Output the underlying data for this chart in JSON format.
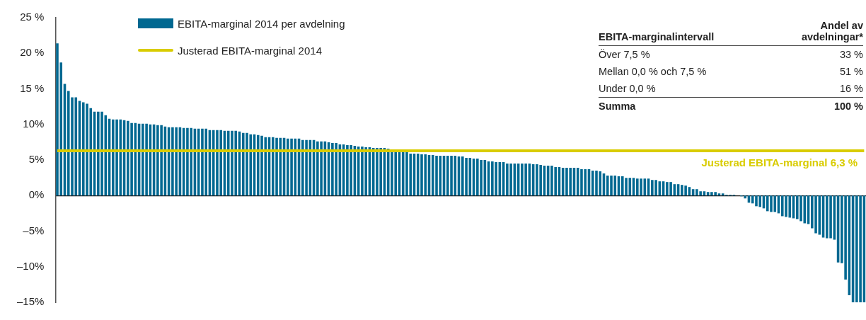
{
  "chart_data": {
    "type": "bar",
    "categories": [
      null,
      null,
      null,
      null,
      null,
      null,
      null,
      null,
      null,
      null,
      null,
      null,
      null,
      null,
      null,
      null,
      null,
      null,
      null,
      null,
      null,
      null,
      null,
      null,
      null,
      null,
      null,
      null,
      null,
      null,
      null,
      null,
      null,
      null,
      null,
      null,
      null,
      null,
      null,
      null,
      null,
      null,
      null,
      null,
      null,
      null,
      null,
      null,
      null,
      null,
      null,
      null,
      null,
      null,
      null,
      null,
      null,
      null,
      null,
      null,
      null,
      null,
      null,
      null,
      null,
      null,
      null,
      null,
      null,
      null,
      null,
      null,
      null,
      null,
      null,
      null,
      null,
      null,
      null,
      null,
      null,
      null,
      null,
      null,
      null,
      null,
      null,
      null,
      null,
      null,
      null,
      null,
      null,
      null,
      null,
      null,
      null,
      null,
      null,
      null,
      null,
      null,
      null,
      null,
      null,
      null,
      null,
      null,
      null,
      null,
      null,
      null,
      null,
      null,
      null,
      null,
      null,
      null,
      null,
      null,
      null,
      null,
      null,
      null,
      null,
      null,
      null,
      null,
      null,
      null,
      null,
      null,
      null,
      null,
      null,
      null,
      null,
      null,
      null,
      null,
      null,
      null,
      null,
      null,
      null,
      null,
      null,
      null,
      null,
      null,
      null,
      null,
      null,
      null,
      null,
      null,
      null,
      null,
      null,
      null,
      null,
      null,
      null,
      null,
      null,
      null,
      null,
      null,
      null,
      null,
      null,
      null,
      null,
      null,
      null,
      null,
      null,
      null,
      null,
      null,
      null,
      null,
      null,
      null,
      null,
      null,
      null,
      null,
      null,
      null,
      null,
      null,
      null,
      null,
      null,
      null,
      null,
      null,
      null,
      null,
      null,
      null,
      null,
      null,
      null,
      null,
      null,
      null,
      null,
      null,
      null,
      null,
      null,
      null,
      null,
      null,
      null,
      null
    ],
    "series": [
      {
        "name": "EBITA-marginal 2014 per avdelning",
        "color": "#006891",
        "values": [
          21.4,
          18.7,
          15.7,
          14.7,
          13.8,
          13.8,
          13.3,
          13.1,
          12.9,
          12.3,
          11.8,
          11.8,
          11.8,
          11.3,
          10.8,
          10.7,
          10.7,
          10.7,
          10.6,
          10.5,
          10.2,
          10.2,
          10.1,
          10.1,
          10.1,
          10.0,
          10.0,
          9.9,
          9.9,
          9.7,
          9.6,
          9.6,
          9.6,
          9.6,
          9.5,
          9.5,
          9.5,
          9.4,
          9.4,
          9.4,
          9.4,
          9.2,
          9.2,
          9.2,
          9.2,
          9.1,
          9.1,
          9.1,
          9.1,
          9.0,
          8.8,
          8.8,
          8.6,
          8.6,
          8.5,
          8.4,
          8.2,
          8.2,
          8.2,
          8.1,
          8.1,
          8.1,
          8.0,
          8.0,
          8.0,
          8.0,
          7.8,
          7.8,
          7.8,
          7.8,
          7.6,
          7.6,
          7.6,
          7.5,
          7.4,
          7.4,
          7.2,
          7.2,
          7.1,
          7.1,
          7.0,
          6.9,
          6.9,
          6.8,
          6.8,
          6.7,
          6.7,
          6.7,
          6.7,
          6.6,
          6.2,
          6.2,
          6.2,
          6.1,
          6.1,
          5.9,
          5.9,
          5.9,
          5.8,
          5.8,
          5.7,
          5.7,
          5.6,
          5.6,
          5.6,
          5.6,
          5.6,
          5.6,
          5.5,
          5.5,
          5.3,
          5.3,
          5.2,
          5.2,
          5.0,
          5.0,
          4.8,
          4.8,
          4.7,
          4.7,
          4.7,
          4.5,
          4.5,
          4.5,
          4.5,
          4.5,
          4.5,
          4.5,
          4.4,
          4.4,
          4.3,
          4.2,
          4.2,
          4.2,
          4.0,
          4.0,
          3.9,
          3.9,
          3.9,
          3.9,
          3.9,
          3.7,
          3.7,
          3.7,
          3.5,
          3.5,
          3.4,
          3.1,
          2.8,
          2.8,
          2.8,
          2.7,
          2.7,
          2.5,
          2.5,
          2.5,
          2.4,
          2.4,
          2.4,
          2.4,
          2.2,
          2.2,
          2.0,
          2.0,
          1.9,
          1.9,
          1.6,
          1.6,
          1.5,
          1.4,
          1.2,
          0.9,
          0.9,
          0.6,
          0.6,
          0.5,
          0.5,
          0.5,
          0.3,
          0.3,
          0.1,
          0.1,
          0.1,
          0.0,
          -0.1,
          -0.4,
          -1.0,
          -1.1,
          -1.5,
          -1.6,
          -1.8,
          -2.2,
          -2.3,
          -2.3,
          -2.5,
          -2.9,
          -3.0,
          -3.1,
          -3.2,
          -3.3,
          -3.6,
          -3.9,
          -4.0,
          -4.6,
          -5.3,
          -5.5,
          -5.9,
          -6.0,
          -6.0,
          -6.2,
          -9.4,
          -9.5,
          -11.8,
          -14.0,
          -15,
          -15,
          -15,
          -15
        ]
      },
      {
        "name": "Justerad EBITA-marginal 2014",
        "type": "line",
        "color": "#d9cc00",
        "values": [
          6.3,
          6.3,
          6.3,
          6.3,
          6.3,
          6.3,
          6.3,
          6.3,
          6.3,
          6.3,
          6.3,
          6.3,
          6.3,
          6.3,
          6.3,
          6.3,
          6.3,
          6.3,
          6.3,
          6.3,
          6.3,
          6.3,
          6.3,
          6.3,
          6.3,
          6.3,
          6.3,
          6.3,
          6.3,
          6.3,
          6.3,
          6.3,
          6.3,
          6.3,
          6.3,
          6.3,
          6.3,
          6.3,
          6.3,
          6.3,
          6.3,
          6.3,
          6.3,
          6.3,
          6.3,
          6.3,
          6.3,
          6.3,
          6.3,
          6.3,
          6.3,
          6.3,
          6.3,
          6.3,
          6.3,
          6.3,
          6.3,
          6.3,
          6.3,
          6.3,
          6.3,
          6.3,
          6.3,
          6.3,
          6.3,
          6.3,
          6.3,
          6.3,
          6.3,
          6.3,
          6.3,
          6.3,
          6.3,
          6.3,
          6.3,
          6.3,
          6.3,
          6.3,
          6.3,
          6.3,
          6.3,
          6.3,
          6.3,
          6.3,
          6.3,
          6.3,
          6.3,
          6.3,
          6.3,
          6.3,
          6.3,
          6.3,
          6.3,
          6.3,
          6.3,
          6.3,
          6.3,
          6.3,
          6.3,
          6.3,
          6.3,
          6.3,
          6.3,
          6.3,
          6.3,
          6.3,
          6.3,
          6.3,
          6.3,
          6.3,
          6.3,
          6.3,
          6.3,
          6.3,
          6.3,
          6.3,
          6.3,
          6.3,
          6.3,
          6.3,
          6.3,
          6.3,
          6.3,
          6.3,
          6.3,
          6.3,
          6.3,
          6.3,
          6.3,
          6.3,
          6.3,
          6.3,
          6.3,
          6.3,
          6.3,
          6.3,
          6.3,
          6.3,
          6.3,
          6.3,
          6.3,
          6.3,
          6.3,
          6.3,
          6.3,
          6.3,
          6.3,
          6.3,
          6.3,
          6.3,
          6.3,
          6.3,
          6.3,
          6.3,
          6.3,
          6.3,
          6.3,
          6.3,
          6.3,
          6.3,
          6.3,
          6.3,
          6.3,
          6.3,
          6.3,
          6.3,
          6.3,
          6.3,
          6.3,
          6.3,
          6.3,
          6.3,
          6.3,
          6.3,
          6.3,
          6.3,
          6.3,
          6.3,
          6.3,
          6.3,
          6.3,
          6.3,
          6.3,
          6.3,
          6.3,
          6.3,
          6.3,
          6.3,
          6.3,
          6.3,
          6.3,
          6.3,
          6.3,
          6.3,
          6.3,
          6.3,
          6.3,
          6.3,
          6.3,
          6.3,
          6.3,
          6.3,
          6.3,
          6.3,
          6.3,
          6.3,
          6.3,
          6.3,
          6.3,
          6.3,
          6.3,
          6.3,
          6.3,
          6.3,
          6.3,
          6.3,
          6.3,
          6.3
        ]
      }
    ],
    "ylim": [
      -15,
      25
    ],
    "yticks": [
      {
        "value": 25,
        "label": "25 %"
      },
      {
        "value": 20,
        "label": "20 %"
      },
      {
        "value": 15,
        "label": "15 %"
      },
      {
        "value": 10,
        "label": "10%"
      },
      {
        "value": 5,
        "label": "5%"
      },
      {
        "value": 0,
        "label": "0%"
      },
      {
        "value": -5,
        "label": "–5%"
      },
      {
        "value": -10,
        "label": "–10%"
      },
      {
        "value": -15,
        "label": "–15%"
      }
    ],
    "legend": "top left",
    "annotations": [
      "EBITA-marginalintervall",
      "Andel av avdelningar*",
      "Över 7,5 %",
      "33 %",
      "Mellan 0,0 % och 7,5 %",
      "51 %",
      "Under 0,0 %",
      "16 %",
      "Summa",
      "100 %",
      {
        "text": "Justerad EBITA-marginal 6,3 %",
        "y": 6.3
      }
    ]
  }
}
